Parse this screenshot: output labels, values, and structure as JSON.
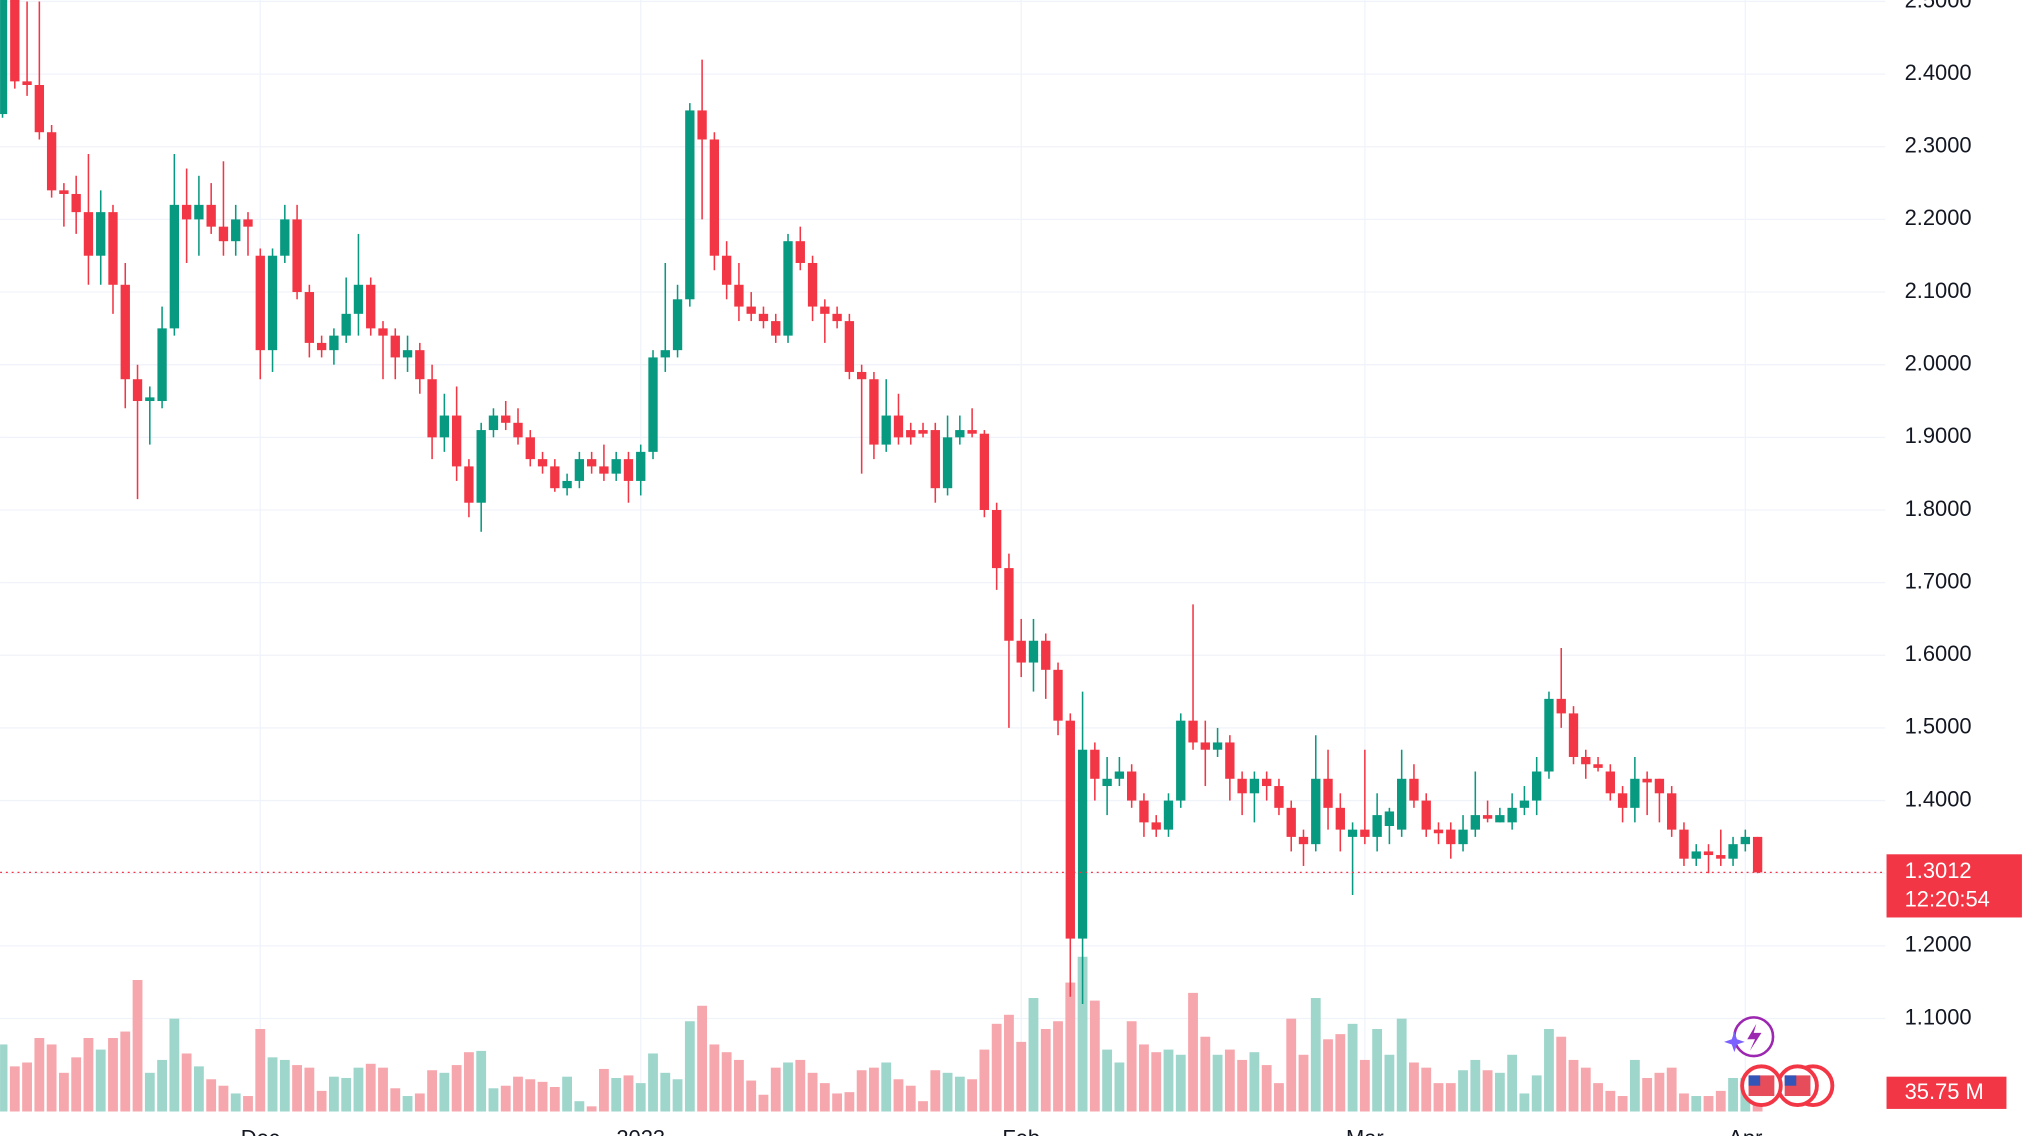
{
  "chart_data": {
    "type": "candlestick",
    "up_color": "#089981",
    "down_color": "#f23645",
    "up_volume_color": "#9ed6cc",
    "down_volume_color": "#f5a7ad",
    "grid": true,
    "xlim": [
      -0.2,
      153.4
    ],
    "xticks": [
      {
        "value": 21,
        "label": "Dec"
      },
      {
        "value": 52,
        "label": "2023"
      },
      {
        "value": 83,
        "label": "Feb"
      },
      {
        "value": 111,
        "label": "Mar"
      },
      {
        "value": 142,
        "label": "Apr"
      }
    ],
    "ylim": [
      0.972,
      2.502
    ],
    "yticks": [
      {
        "value": 2.5,
        "label": "2.5000"
      },
      {
        "value": 2.4,
        "label": "2.4000"
      },
      {
        "value": 2.3,
        "label": "2.3000"
      },
      {
        "value": 2.2,
        "label": "2.2000"
      },
      {
        "value": 2.1,
        "label": "2.1000"
      },
      {
        "value": 2.0,
        "label": "2.0000"
      },
      {
        "value": 1.9,
        "label": "1.9000"
      },
      {
        "value": 1.8,
        "label": "1.8000"
      },
      {
        "value": 1.7,
        "label": "1.7000"
      },
      {
        "value": 1.6,
        "label": "1.6000"
      },
      {
        "value": 1.5,
        "label": "1.5000"
      },
      {
        "value": 1.4,
        "label": "1.4000"
      },
      {
        "value": 1.3,
        "label": "1.3000"
      },
      {
        "value": 1.2,
        "label": "1.2000"
      },
      {
        "value": 1.1,
        "label": "1.1000"
      }
    ],
    "open": [
      2.345,
      2.52,
      2.39,
      2.385,
      2.32,
      2.24,
      2.235,
      2.21,
      2.15,
      2.21,
      2.11,
      1.98,
      1.95,
      1.95,
      2.05,
      2.22,
      2.2,
      2.22,
      2.19,
      2.17,
      2.2,
      2.15,
      2.02,
      2.15,
      2.2,
      2.1,
      2.03,
      2.02,
      2.04,
      2.07,
      2.11,
      2.05,
      2.04,
      2.01,
      2.02,
      1.98,
      1.9,
      1.93,
      1.86,
      1.81,
      1.91,
      1.93,
      1.92,
      1.9,
      1.87,
      1.86,
      1.83,
      1.84,
      1.87,
      1.86,
      1.85,
      1.87,
      1.84,
      1.88,
      2.01,
      2.02,
      2.09,
      2.35,
      2.31,
      2.15,
      2.11,
      2.08,
      2.07,
      2.06,
      2.04,
      2.17,
      2.14,
      2.08,
      2.07,
      2.06,
      1.99,
      1.98,
      1.89,
      1.93,
      1.91,
      1.91,
      1.91,
      1.83,
      1.9,
      1.91,
      1.905,
      1.8,
      1.72,
      1.62,
      1.59,
      1.62,
      1.58,
      1.51,
      1.21,
      1.47,
      1.42,
      1.43,
      1.44,
      1.4,
      1.37,
      1.36,
      1.4,
      1.51,
      1.48,
      1.47,
      1.48,
      1.43,
      1.41,
      1.43,
      1.42,
      1.39,
      1.35,
      1.34,
      1.43,
      1.39,
      1.35,
      1.36,
      1.35,
      1.365,
      1.36,
      1.43,
      1.4,
      1.36,
      1.36,
      1.34,
      1.36,
      1.38,
      1.37,
      1.37,
      1.39,
      1.4,
      1.44,
      1.54,
      1.52,
      1.46,
      1.45,
      1.44,
      1.41,
      1.39,
      1.43,
      1.43,
      1.41,
      1.36,
      1.32,
      1.33,
      1.325,
      1.32,
      1.34,
      1.35
    ],
    "high": [
      2.55,
      2.55,
      2.5,
      2.5,
      2.33,
      2.25,
      2.26,
      2.29,
      2.24,
      2.22,
      2.14,
      2.0,
      1.97,
      2.08,
      2.29,
      2.27,
      2.26,
      2.25,
      2.28,
      2.22,
      2.21,
      2.16,
      2.16,
      2.22,
      2.22,
      2.11,
      2.04,
      2.05,
      2.12,
      2.18,
      2.12,
      2.06,
      2.05,
      2.04,
      2.03,
      2.0,
      1.96,
      1.97,
      1.87,
      1.92,
      1.94,
      1.95,
      1.94,
      1.91,
      1.88,
      1.87,
      1.85,
      1.88,
      1.88,
      1.89,
      1.88,
      1.88,
      1.89,
      2.02,
      2.14,
      2.11,
      2.36,
      2.42,
      2.32,
      2.17,
      2.14,
      2.1,
      2.08,
      2.07,
      2.18,
      2.19,
      2.15,
      2.09,
      2.08,
      2.07,
      2.0,
      1.99,
      1.98,
      1.96,
      1.92,
      1.92,
      1.92,
      1.93,
      1.93,
      1.94,
      1.91,
      1.81,
      1.74,
      1.65,
      1.65,
      1.63,
      1.59,
      1.52,
      1.55,
      1.48,
      1.46,
      1.46,
      1.45,
      1.41,
      1.38,
      1.41,
      1.52,
      1.67,
      1.51,
      1.5,
      1.49,
      1.44,
      1.44,
      1.44,
      1.43,
      1.4,
      1.36,
      1.49,
      1.47,
      1.41,
      1.37,
      1.47,
      1.41,
      1.39,
      1.47,
      1.45,
      1.41,
      1.37,
      1.37,
      1.38,
      1.44,
      1.4,
      1.39,
      1.41,
      1.42,
      1.46,
      1.55,
      1.61,
      1.53,
      1.47,
      1.46,
      1.45,
      1.42,
      1.46,
      1.44,
      1.43,
      1.42,
      1.37,
      1.34,
      1.34,
      1.36,
      1.35,
      1.36,
      1.35
    ],
    "low": [
      2.34,
      2.38,
      2.37,
      2.31,
      2.23,
      2.19,
      2.18,
      2.11,
      2.11,
      2.07,
      1.94,
      1.815,
      1.89,
      1.94,
      2.04,
      2.14,
      2.15,
      2.18,
      2.15,
      2.15,
      2.15,
      1.98,
      1.99,
      2.14,
      2.09,
      2.01,
      2.01,
      2.0,
      2.03,
      2.04,
      2.04,
      1.98,
      1.98,
      1.99,
      1.96,
      1.87,
      1.88,
      1.84,
      1.79,
      1.77,
      1.9,
      1.91,
      1.89,
      1.86,
      1.85,
      1.825,
      1.82,
      1.83,
      1.85,
      1.84,
      1.84,
      1.81,
      1.82,
      1.87,
      1.99,
      2.01,
      2.08,
      2.2,
      2.13,
      2.09,
      2.06,
      2.06,
      2.05,
      2.03,
      2.03,
      2.13,
      2.06,
      2.03,
      2.05,
      1.98,
      1.85,
      1.87,
      1.88,
      1.89,
      1.89,
      1.9,
      1.81,
      1.82,
      1.89,
      1.9,
      1.79,
      1.69,
      1.5,
      1.57,
      1.55,
      1.54,
      1.49,
      1.13,
      1.12,
      1.4,
      1.38,
      1.42,
      1.39,
      1.35,
      1.35,
      1.35,
      1.39,
      1.47,
      1.42,
      1.46,
      1.4,
      1.38,
      1.37,
      1.4,
      1.38,
      1.33,
      1.31,
      1.33,
      1.36,
      1.33,
      1.27,
      1.34,
      1.33,
      1.34,
      1.35,
      1.39,
      1.35,
      1.34,
      1.32,
      1.33,
      1.35,
      1.37,
      1.37,
      1.36,
      1.38,
      1.38,
      1.43,
      1.5,
      1.45,
      1.43,
      1.44,
      1.4,
      1.37,
      1.37,
      1.38,
      1.37,
      1.35,
      1.31,
      1.31,
      1.3,
      1.31,
      1.31,
      1.33,
      1.3
    ],
    "close": [
      2.52,
      2.39,
      2.385,
      2.32,
      2.24,
      2.235,
      2.21,
      2.15,
      2.21,
      2.11,
      1.98,
      1.95,
      1.955,
      2.05,
      2.22,
      2.2,
      2.22,
      2.19,
      2.17,
      2.2,
      2.19,
      2.02,
      2.15,
      2.2,
      2.1,
      2.03,
      2.02,
      2.04,
      2.07,
      2.11,
      2.05,
      2.04,
      2.01,
      2.02,
      1.98,
      1.9,
      1.93,
      1.86,
      1.81,
      1.91,
      1.93,
      1.92,
      1.9,
      1.87,
      1.86,
      1.83,
      1.84,
      1.87,
      1.86,
      1.85,
      1.87,
      1.84,
      1.88,
      2.01,
      2.02,
      2.09,
      2.35,
      2.31,
      2.15,
      2.11,
      2.08,
      2.07,
      2.06,
      2.04,
      2.17,
      2.14,
      2.08,
      2.07,
      2.06,
      1.99,
      1.98,
      1.89,
      1.93,
      1.9,
      1.9,
      1.905,
      1.83,
      1.9,
      1.91,
      1.905,
      1.8,
      1.72,
      1.62,
      1.59,
      1.62,
      1.58,
      1.51,
      1.21,
      1.47,
      1.43,
      1.43,
      1.44,
      1.4,
      1.37,
      1.36,
      1.4,
      1.51,
      1.48,
      1.47,
      1.48,
      1.43,
      1.41,
      1.43,
      1.42,
      1.39,
      1.35,
      1.34,
      1.43,
      1.39,
      1.36,
      1.36,
      1.35,
      1.38,
      1.385,
      1.43,
      1.4,
      1.36,
      1.355,
      1.34,
      1.36,
      1.38,
      1.375,
      1.38,
      1.39,
      1.4,
      1.44,
      1.54,
      1.52,
      1.46,
      1.45,
      1.445,
      1.41,
      1.39,
      1.43,
      1.425,
      1.41,
      1.36,
      1.32,
      1.33,
      1.325,
      1.32,
      1.34,
      1.35,
      1.3012
    ],
    "volume": [
      124.8,
      84,
      91.2,
      136.8,
      124.8,
      72,
      100.8,
      136.8,
      115.2,
      136.8,
      148.8,
      244.8,
      72,
      96,
      172.8,
      108,
      84,
      60,
      48,
      33.6,
      28.8,
      153.6,
      100.8,
      96,
      86.4,
      81.6,
      38.4,
      64.8,
      62.4,
      81.6,
      88.8,
      81.6,
      43.2,
      28.8,
      33.6,
      76.8,
      72,
      86.4,
      110.4,
      112.8,
      43.2,
      48,
      64.8,
      60,
      55.2,
      45.6,
      64.8,
      19.2,
      9.6,
      79.2,
      62.4,
      67.2,
      52.8,
      108,
      72,
      60,
      168,
      196.8,
      124.8,
      110.4,
      96,
      57.6,
      31.2,
      81.6,
      91.2,
      96,
      72,
      52.8,
      33.6,
      36,
      76.8,
      81.6,
      91.2,
      60,
      48,
      19.2,
      76.8,
      72,
      64.8,
      60,
      115.2,
      163.2,
      180,
      129.6,
      211.2,
      153.6,
      168,
      240,
      288,
      206.4,
      115.2,
      91.2,
      168,
      124.8,
      110.4,
      115.2,
      105.6,
      220.8,
      139.2,
      105.6,
      115.2,
      96,
      110.4,
      86.4,
      52.8,
      172.8,
      105.6,
      211.2,
      134.4,
      144,
      163.2,
      96,
      153.6,
      105.6,
      172.8,
      91.2,
      81.6,
      52.8,
      52.8,
      76.8,
      96,
      76.8,
      72,
      105.6,
      33.6,
      67.2,
      153.6,
      139.2,
      96,
      81.6,
      52.8,
      38.4,
      28.8,
      96,
      62.4,
      72,
      81.6,
      33.6,
      28.8,
      28.8,
      38.4,
      62.4,
      62.4,
      35.75
    ],
    "volume_label": "35.75 M",
    "countdown": "12:20:54"
  }
}
